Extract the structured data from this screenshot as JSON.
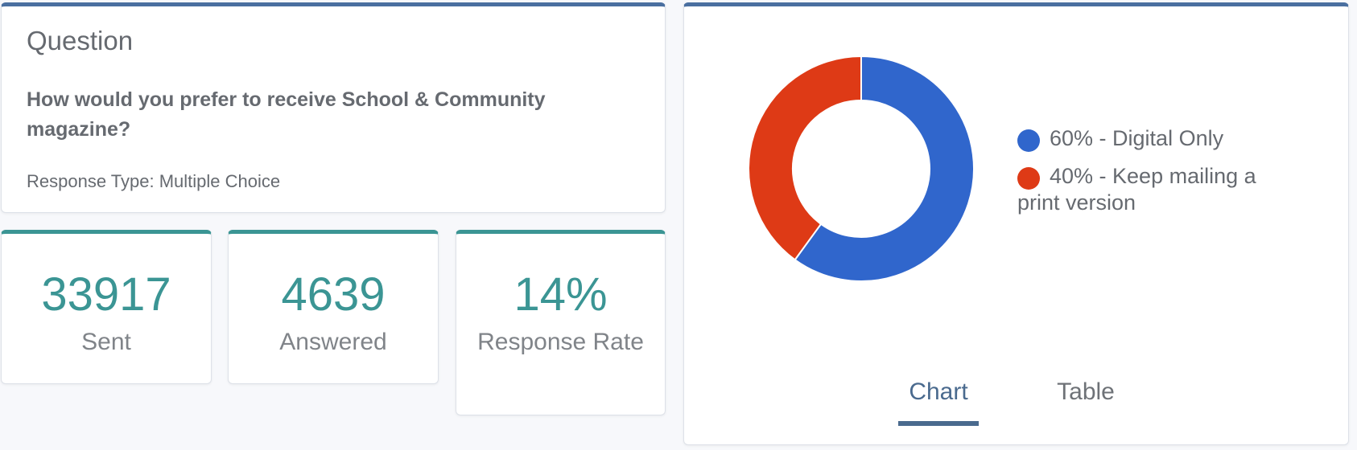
{
  "question": {
    "heading": "Question",
    "text": "How would you prefer to receive School & Community magazine?",
    "response_type": "Response Type: Multiple Choice"
  },
  "stats": {
    "sent": {
      "value": "33917",
      "label": "Sent"
    },
    "answered": {
      "value": "4639",
      "label": "Answered"
    },
    "rate": {
      "value": "14%",
      "label": "Response Rate"
    }
  },
  "colors": {
    "digital": "#3066cc",
    "print": "#de3a16",
    "teal": "#3b9594",
    "header_blue": "#4a6fa0"
  },
  "chart_data": {
    "type": "pie",
    "labels": [
      "60% - Digital Only",
      "40% - Keep mailing a print version"
    ],
    "values": [
      60,
      40
    ],
    "colors": [
      "#3066cc",
      "#de3a16"
    ],
    "legend": "right",
    "donut": true
  },
  "tabs": {
    "chart": "Chart",
    "table": "Table"
  }
}
